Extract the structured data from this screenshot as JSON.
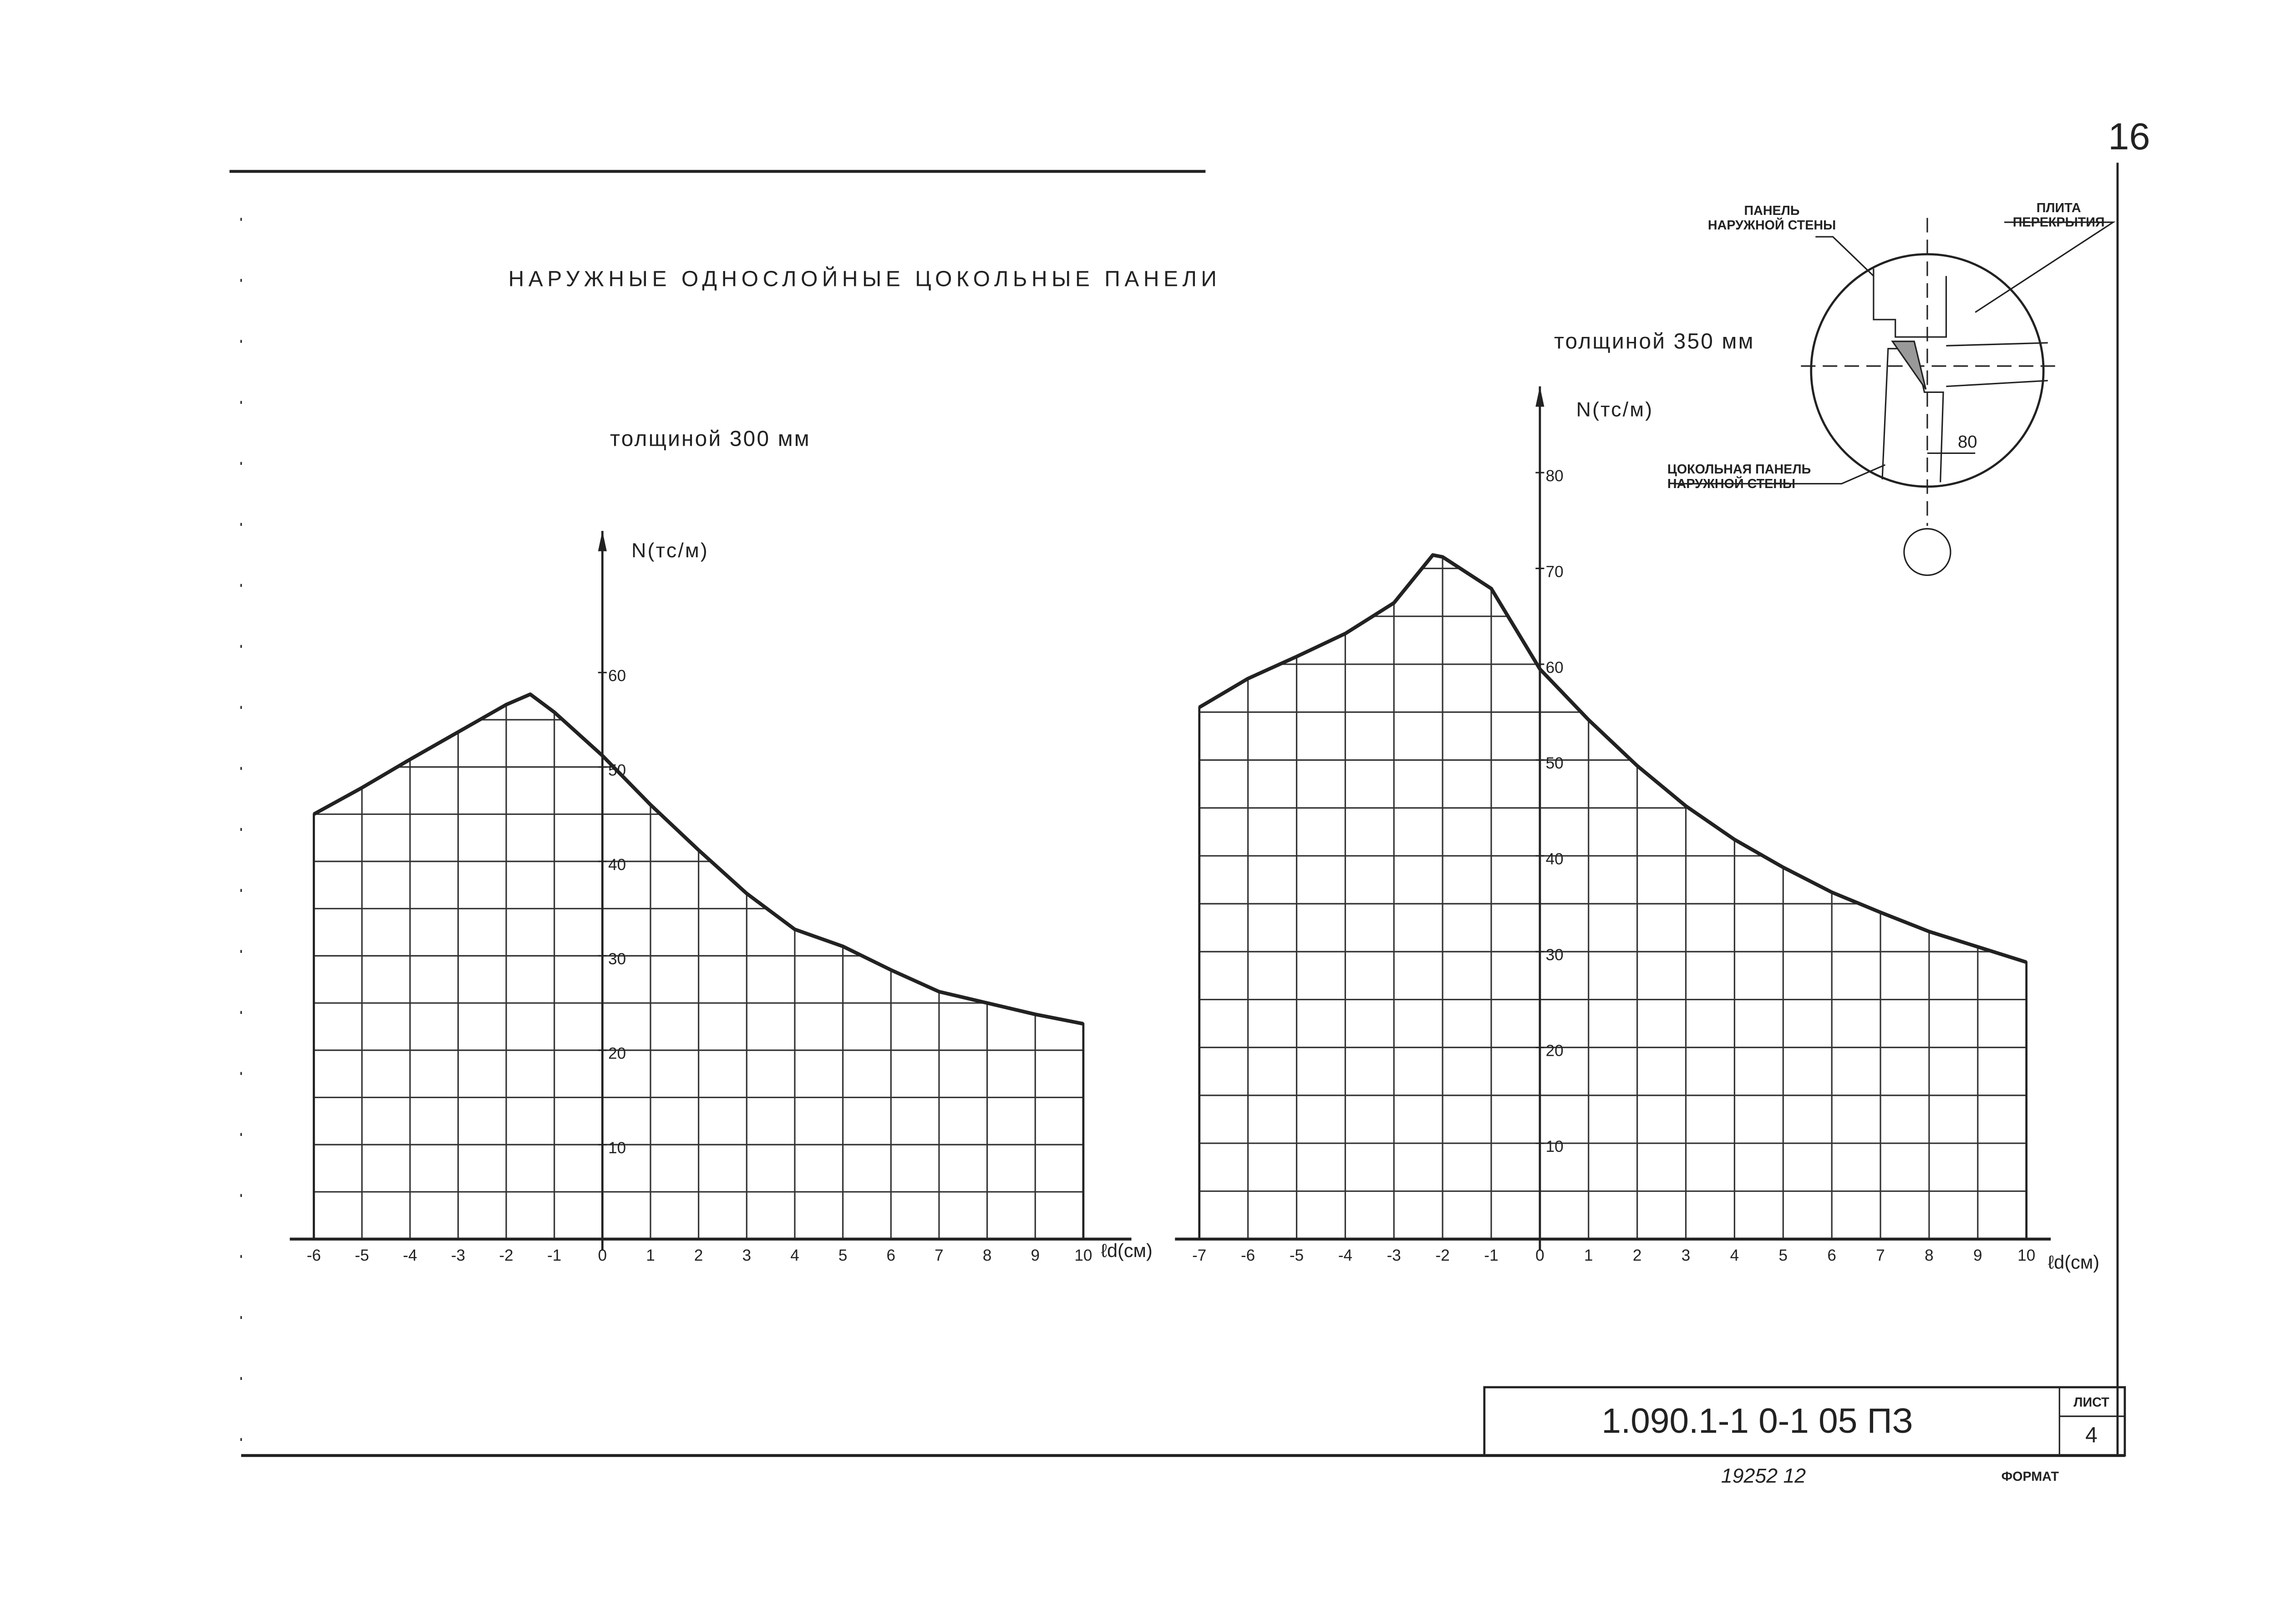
{
  "page_number": "16",
  "title": "НАРУЖНЫЕ ОДНОСЛОЙНЫЕ ЦОКОЛЬНЫЕ ПАНЕЛИ",
  "detail": {
    "wall_panel": "ПАНЕЛЬ НАРУЖНОЙ СТЕНЫ",
    "slab": "ПЛИТА ПЕРЕКРЫТИЯ",
    "plinth_panel": "ЦОКОЛЬНАЯ ПАНЕЛЬ НАРУЖНОЙ СТЕНЫ",
    "dimension": "80"
  },
  "stamp": {
    "code": "1.090.1-1 0-1 05 ПЗ",
    "sheet_label": "ЛИСТ",
    "sheet": "4",
    "inventory": "19252 12",
    "format": "ФОРМАТ"
  },
  "chart_data": [
    {
      "type": "line",
      "subtitle": "толщиной 300 мм",
      "ylabel": "N(тс/м)",
      "xlabel": "ℓd(см)",
      "color": "#222",
      "grid": true,
      "x": [
        -6,
        -5,
        -4,
        -3,
        -2,
        -1.5,
        -1,
        0,
        1,
        2,
        3,
        4,
        5,
        6,
        7,
        8,
        9,
        10
      ],
      "values": [
        45,
        47.8,
        50.8,
        53.7,
        56.6,
        57.7,
        55.8,
        51.2,
        46,
        41.2,
        36.6,
        32.8,
        31,
        28.5,
        26.2,
        25,
        23.8,
        22.8
      ],
      "xlim": [
        -6.5,
        11
      ],
      "ylim": [
        0,
        75
      ],
      "xticks": [
        -6,
        -5,
        -4,
        -3,
        -2,
        -1,
        0,
        1,
        2,
        3,
        4,
        5,
        6,
        7,
        8,
        9,
        10
      ],
      "yticks": [
        10,
        20,
        30,
        40,
        50,
        60
      ]
    },
    {
      "type": "line",
      "subtitle": "толщиной 350 мм",
      "ylabel": "N(тс/м)",
      "xlabel": "ℓd(см)",
      "color": "#222",
      "grid": true,
      "x": [
        -7,
        -6,
        -5,
        -4,
        -3,
        -2.2,
        -2,
        -1,
        0,
        1,
        2,
        3,
        4,
        5,
        6,
        7,
        8,
        9,
        10
      ],
      "values": [
        55.5,
        58.5,
        60.8,
        63.2,
        66.4,
        71.4,
        71.2,
        67.9,
        59.5,
        54.2,
        49.4,
        45.2,
        41.7,
        38.8,
        36.2,
        34.1,
        32.1,
        30.5,
        28.9
      ],
      "xlim": [
        -7.5,
        10.5
      ],
      "ylim": [
        0,
        89
      ],
      "xticks": [
        -7,
        -6,
        -5,
        -4,
        -3,
        -2,
        -1,
        0,
        1,
        2,
        3,
        4,
        5,
        6,
        7,
        8,
        9,
        10
      ],
      "yticks": [
        10,
        20,
        30,
        40,
        50,
        60,
        70,
        80
      ]
    }
  ]
}
